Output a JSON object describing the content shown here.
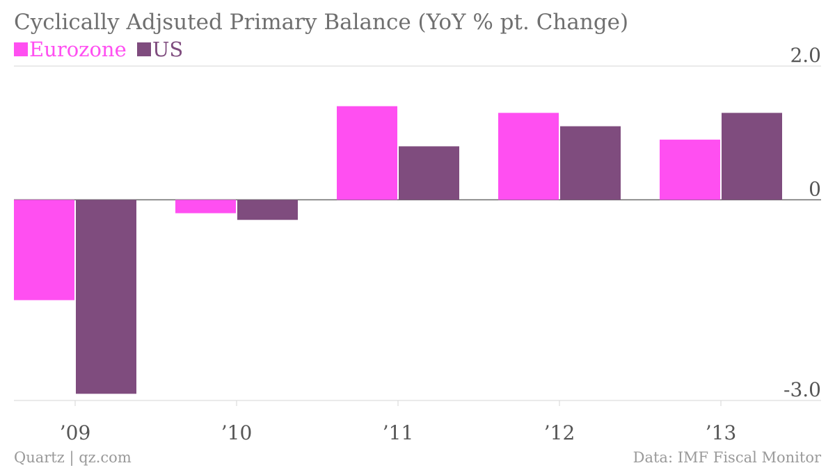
{
  "chart_data": {
    "type": "bar",
    "title": "Cyclically Adjsuted Primary Balance (YoY % pt. Change)",
    "categories": [
      "’09",
      "’10",
      "’11",
      "’12",
      "’13"
    ],
    "series": [
      {
        "name": "Eurozone",
        "color": "#ff4ff1",
        "values": [
          -1.5,
          -0.2,
          1.4,
          1.3,
          0.9
        ]
      },
      {
        "name": "US",
        "color": "#7f4c7e",
        "values": [
          -2.9,
          -0.3,
          0.8,
          1.1,
          1.3
        ]
      }
    ],
    "ylim": [
      -3.0,
      2.0
    ],
    "yticks": [
      {
        "value": 2.0,
        "label": "2.0"
      },
      {
        "value": 0,
        "label": "0"
      },
      {
        "value": -3.0,
        "label": "-3.0"
      }
    ],
    "grid": true,
    "legend_position": "top-left",
    "xlabel": "",
    "ylabel": ""
  },
  "footer": {
    "source_left": "Quartz | qz.com",
    "source_right": "Data: IMF Fiscal Monitor"
  }
}
